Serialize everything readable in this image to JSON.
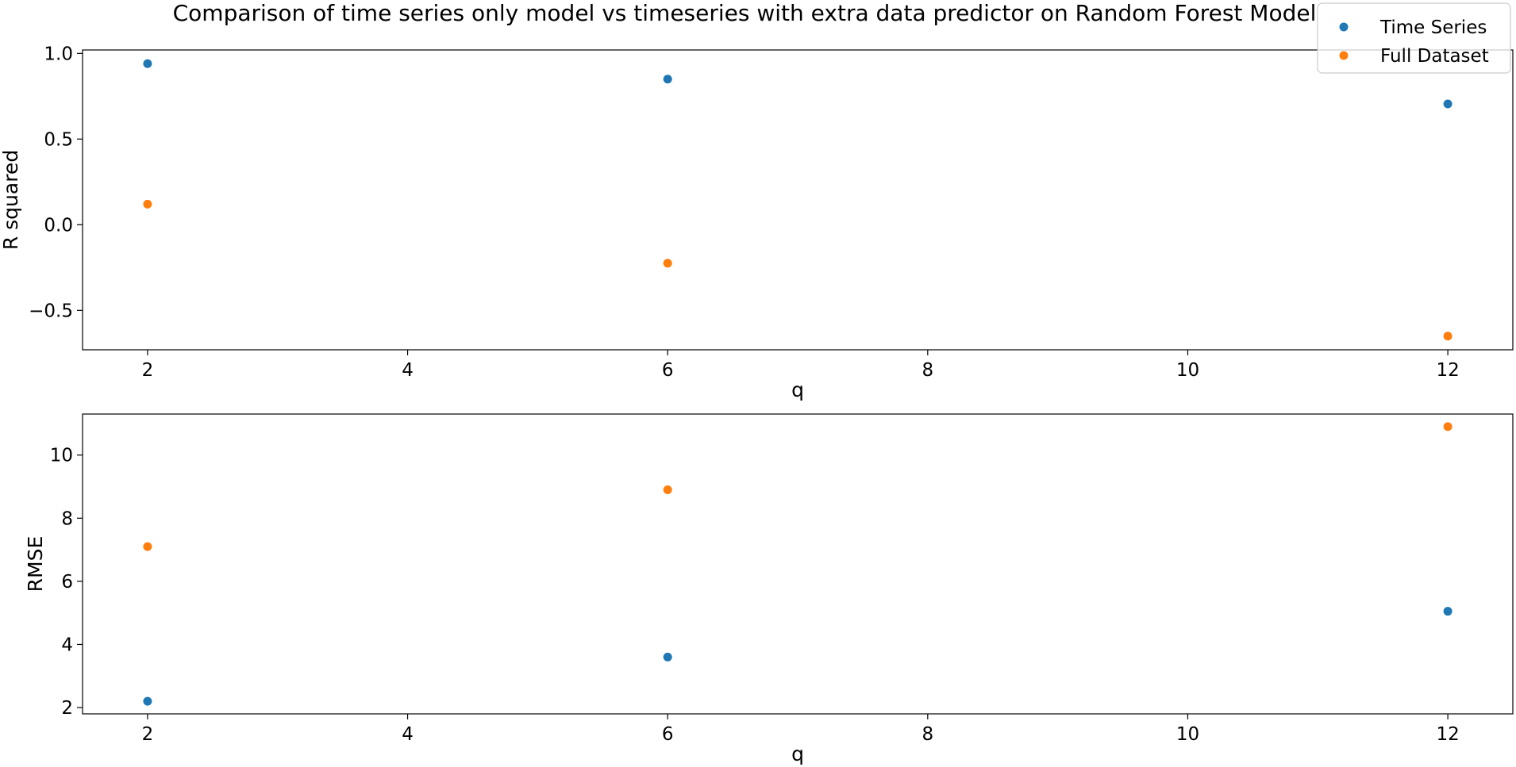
{
  "figure": {
    "title": "Comparison of time series only model vs timeseries with extra data predictor on Random Forest Model"
  },
  "legend": {
    "placement": "top-right",
    "entries": [
      {
        "label": "Time Series",
        "color": "#1f77b4"
      },
      {
        "label": "Full Dataset",
        "color": "#ff7f0e"
      }
    ]
  },
  "chart_data": [
    {
      "type": "scatter",
      "x": [
        2,
        6,
        12
      ],
      "series": [
        {
          "name": "Time Series",
          "values": [
            0.94,
            0.85,
            0.705
          ],
          "color": "#1f77b4"
        },
        {
          "name": "Full Dataset",
          "values": [
            0.12,
            -0.225,
            -0.65
          ],
          "color": "#ff7f0e"
        }
      ],
      "xlabel": "q",
      "ylabel": "R squared",
      "xlim": [
        1.5,
        12.5
      ],
      "ylim": [
        -0.73,
        1.02
      ],
      "xticks": [
        2,
        4,
        6,
        8,
        10,
        12
      ],
      "xtick_labels": [
        "2",
        "4",
        "6",
        "8",
        "10",
        "12"
      ],
      "yticks": [
        -0.5,
        0.0,
        0.5,
        1.0
      ],
      "ytick_labels": [
        "−0.5",
        "0.0",
        "0.5",
        "1.0"
      ],
      "grid": false
    },
    {
      "type": "scatter",
      "x": [
        2,
        6,
        12
      ],
      "series": [
        {
          "name": "Time Series",
          "values": [
            2.2,
            3.6,
            5.05
          ],
          "color": "#1f77b4"
        },
        {
          "name": "Full Dataset",
          "values": [
            7.1,
            8.9,
            10.9
          ],
          "color": "#ff7f0e"
        }
      ],
      "xlabel": "q",
      "ylabel": "RMSE",
      "xlim": [
        1.5,
        12.5
      ],
      "ylim": [
        1.8,
        11.3
      ],
      "xticks": [
        2,
        4,
        6,
        8,
        10,
        12
      ],
      "xtick_labels": [
        "2",
        "4",
        "6",
        "8",
        "10",
        "12"
      ],
      "yticks": [
        2,
        4,
        6,
        8,
        10
      ],
      "ytick_labels": [
        "2",
        "4",
        "6",
        "8",
        "10"
      ],
      "grid": false
    }
  ]
}
